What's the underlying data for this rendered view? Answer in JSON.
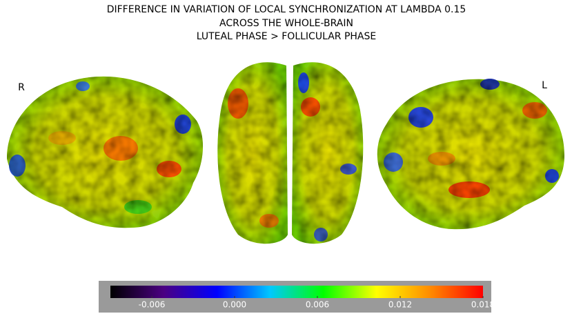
{
  "figure": {
    "title_lines": [
      "DIFFERENCE IN VARIATION OF LOCAL SYNCHRONIZATION AT LAMBDA 0.15",
      "ACROSS THE WHOLE-BRAIN",
      "LUTEAL PHASE > FOLLICULAR PHASE"
    ],
    "side_labels": [
      "R",
      "L"
    ],
    "colorbar": {
      "lim": [
        -0.009,
        0.018
      ],
      "ticks": [
        -0.006,
        {
          "value": 0,
          "label": "0.000"
        },
        0.006,
        0.012,
        0.018
      ],
      "colormap": [
        "#000000",
        "#4b0082",
        "#0000ff",
        "#00c8ff",
        "#00ff00",
        "#ffff00",
        "#ff8c00",
        "#ff0000"
      ]
    }
  }
}
